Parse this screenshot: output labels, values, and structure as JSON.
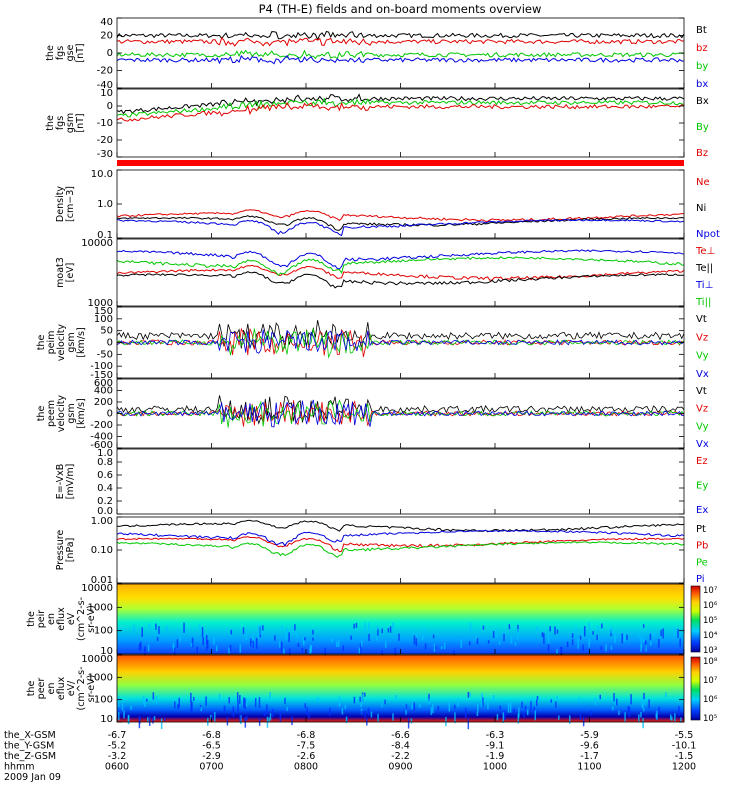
{
  "title": "P4 (TH-E) fields and on-board moments overview",
  "colors": {
    "black": "#000000",
    "red": "#e00000",
    "green": "#00c800",
    "blue": "#0000e0",
    "bar": "#ff0000"
  },
  "chart_data": [
    {
      "type": "line",
      "ylabel": [
        "the",
        "fgs",
        "gse",
        "[nT]"
      ],
      "yticks": [
        "40",
        "20",
        "0",
        "-20",
        "-40"
      ],
      "ylim": [
        -40,
        40
      ],
      "series": [
        {
          "name": "Bt",
          "color": "black",
          "base": 20
        },
        {
          "name": "bz",
          "color": "red",
          "base": 13
        },
        {
          "name": "by",
          "color": "green",
          "base": -2
        },
        {
          "name": "bx",
          "color": "blue",
          "base": -8
        }
      ]
    },
    {
      "type": "line",
      "ylabel": [
        "the",
        "fgs",
        "gsm",
        "[nT]"
      ],
      "yticks": [
        "10",
        "0",
        "-10",
        "-20",
        "-30"
      ],
      "ylim": [
        -35,
        15
      ],
      "series": [
        {
          "name": "Bx",
          "color": "black",
          "base": 8
        },
        {
          "name": "By",
          "color": "green",
          "base": 5
        },
        {
          "name": "Bz",
          "color": "red",
          "base": 2
        }
      ]
    },
    {
      "type": "line",
      "log": true,
      "ylabel": [
        "Density",
        "[cm−3]"
      ],
      "yticks": [
        "10.0",
        "1.0",
        "0.1"
      ],
      "ylim": [
        0.1,
        15
      ],
      "series": [
        {
          "name": "Ne",
          "color": "red",
          "base": 0.5
        },
        {
          "name": "Ni",
          "color": "black",
          "base": 0.35
        },
        {
          "name": "Npot",
          "color": "blue",
          "base": 0.3
        }
      ]
    },
    {
      "type": "line",
      "log": true,
      "ylabel": [
        "moat3",
        "[eV]"
      ],
      "yticks": [
        "10000",
        "1000"
      ],
      "ylim": [
        300,
        15000
      ],
      "series": [
        {
          "name": "Te⊥",
          "color": "red",
          "base": 2000
        },
        {
          "name": "Te||",
          "color": "black",
          "base": 1500
        },
        {
          "name": "Ti⊥",
          "color": "blue",
          "base": 6000
        },
        {
          "name": "Ti||",
          "color": "green",
          "base": 4000
        }
      ]
    },
    {
      "type": "line",
      "ylabel": [
        "the",
        "peim",
        "velocity",
        "gsm",
        "[km/s]"
      ],
      "yticks": [
        "150",
        "100",
        "50",
        "0",
        "-50",
        "-100",
        "-150"
      ],
      "ylim": [
        -160,
        160
      ],
      "series": [
        {
          "name": "Vt",
          "color": "black",
          "base": 30
        },
        {
          "name": "Vz",
          "color": "red",
          "base": 0
        },
        {
          "name": "Vy",
          "color": "green",
          "base": 0
        },
        {
          "name": "Vx",
          "color": "blue",
          "base": 0
        }
      ]
    },
    {
      "type": "line",
      "ylabel": [
        "the",
        "peem",
        "velocity",
        "gsm",
        "[km/s]"
      ],
      "yticks": [
        "600",
        "400",
        "200",
        "0",
        "-200",
        "-400",
        "-600"
      ],
      "ylim": [
        -650,
        650
      ],
      "series": [
        {
          "name": "Vt",
          "color": "black",
          "base": 80
        },
        {
          "name": "Vz",
          "color": "red",
          "base": 0
        },
        {
          "name": "Vy",
          "color": "green",
          "base": 0
        },
        {
          "name": "Vx",
          "color": "blue",
          "base": 0
        }
      ]
    },
    {
      "type": "line",
      "ylabel": [
        "E=-VxB",
        "[mV/m]"
      ],
      "yticks": [
        "1.0",
        "0.8",
        "0.6",
        "0.4",
        "0.2",
        "0.0"
      ],
      "ylim": [
        0,
        1
      ],
      "series": [
        {
          "name": "Ez",
          "color": "red",
          "base": null
        },
        {
          "name": "Ey",
          "color": "green",
          "base": null
        },
        {
          "name": "Ex",
          "color": "blue",
          "base": null
        }
      ]
    },
    {
      "type": "line",
      "log": true,
      "ylabel": [
        "Pressure",
        "[nPa]"
      ],
      "yticks": [
        "1.00",
        "0.10",
        "0.01"
      ],
      "ylim": [
        0.01,
        1.2
      ],
      "series": [
        {
          "name": "Pt",
          "color": "black",
          "base": 0.6
        },
        {
          "name": "Pb",
          "color": "red",
          "base": 0.2
        },
        {
          "name": "Pe",
          "color": "green",
          "base": 0.15
        },
        {
          "name": "Pi",
          "color": "blue",
          "base": 0.35
        }
      ]
    },
    {
      "type": "heatmap",
      "ylabel": [
        "the",
        "peir",
        "en",
        "eflux",
        "eV",
        "(cm^2-s-",
        "sr-eV)"
      ],
      "yticks": [
        "10000",
        "1000",
        "100",
        "10"
      ],
      "colorbar": {
        "ticks": [
          "10⁷",
          "10⁶",
          "10⁵",
          "10⁴",
          "10³"
        ]
      }
    },
    {
      "type": "heatmap",
      "ylabel": [
        "the",
        "peer",
        "en",
        "eflux",
        "eV/",
        "(cm^2-s-",
        "sr-eV)"
      ],
      "yticks": [
        "10000",
        "1000",
        "100",
        "10"
      ],
      "colorbar": {
        "ticks": [
          "10⁸",
          "10⁷",
          "10⁶",
          "10⁵"
        ]
      }
    }
  ],
  "xaxis": {
    "rows": [
      {
        "label": "the_X-GSM",
        "values": [
          "-6.7",
          "-6.8",
          "-6.8",
          "-6.6",
          "-6.3",
          "-5.9",
          "-5.5"
        ]
      },
      {
        "label": "the_Y-GSM",
        "values": [
          "-5.2",
          "-6.5",
          "-7.5",
          "-8.4",
          "-9.1",
          "-9.6",
          "-10.1"
        ]
      },
      {
        "label": "the_Z-GSM",
        "values": [
          "-3.2",
          "-2.9",
          "-2.6",
          "-2.2",
          "-1.9",
          "-1.7",
          "-1.5"
        ]
      },
      {
        "label": "hhmm",
        "values": [
          "0600",
          "0700",
          "0800",
          "0900",
          "1000",
          "1100",
          "1200"
        ]
      }
    ],
    "date": "2009 Jan 09"
  }
}
